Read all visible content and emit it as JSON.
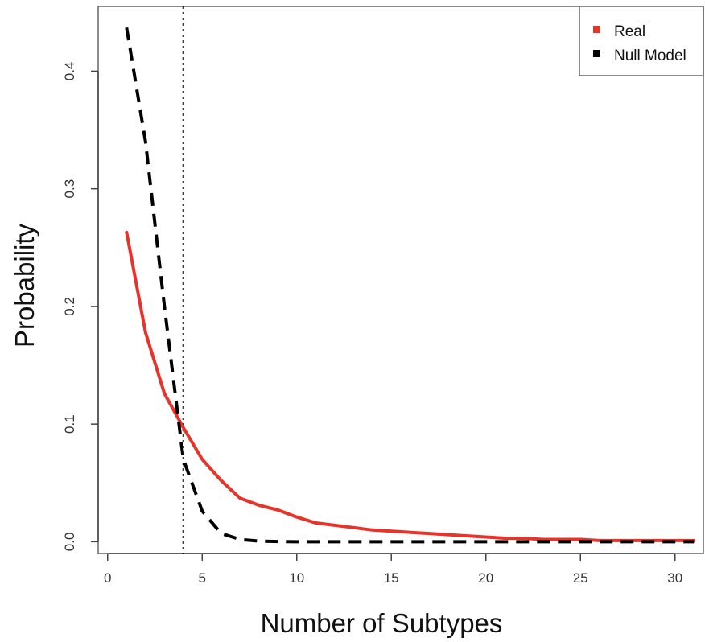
{
  "chart_data": {
    "type": "line",
    "title": "",
    "xlabel": "Number of Subtypes",
    "ylabel": "Probability",
    "xlim": [
      -0.5,
      31.5
    ],
    "ylim": [
      -0.01,
      0.455
    ],
    "xticks": [
      0,
      5,
      10,
      15,
      20,
      25,
      30
    ],
    "xtick_labels": [
      "0",
      "5",
      "10",
      "15",
      "20",
      "25",
      "30"
    ],
    "yticks": [
      0.0,
      0.1,
      0.2,
      0.3,
      0.4
    ],
    "ytick_labels": [
      "0.0",
      "0.1",
      "0.2",
      "0.3",
      "0.4"
    ],
    "grid": false,
    "legend_position": "top-right",
    "reference_line": {
      "x": 4,
      "style": "dotted",
      "color": "#000000"
    },
    "series": [
      {
        "name": "Real",
        "color": "#e8332b",
        "style": "solid",
        "x": [
          1,
          2,
          3,
          4,
          5,
          6,
          7,
          8,
          9,
          10,
          11,
          12,
          13,
          14,
          15,
          16,
          17,
          18,
          19,
          20,
          21,
          22,
          23,
          24,
          25,
          26,
          27,
          28,
          29,
          30,
          31
        ],
        "y": [
          0.263,
          0.178,
          0.126,
          0.097,
          0.07,
          0.052,
          0.037,
          0.031,
          0.027,
          0.021,
          0.016,
          0.014,
          0.012,
          0.01,
          0.009,
          0.008,
          0.007,
          0.006,
          0.005,
          0.004,
          0.003,
          0.003,
          0.002,
          0.002,
          0.002,
          0.001,
          0.001,
          0.001,
          0.001,
          0.001,
          0.001
        ]
      },
      {
        "name": "Null Model",
        "color": "#000000",
        "style": "dashed",
        "x": [
          1,
          2,
          3,
          4,
          5,
          6,
          7,
          8,
          9,
          10,
          11,
          12,
          13,
          14,
          15,
          16,
          17,
          18,
          19,
          20,
          21,
          22,
          23,
          24,
          25,
          26,
          27,
          28,
          29,
          30,
          31
        ],
        "y": [
          0.437,
          0.34,
          0.2,
          0.07,
          0.026,
          0.007,
          0.002,
          0.0005,
          0.0002,
          0,
          0,
          0,
          0,
          0,
          0,
          0,
          0,
          0,
          0,
          0,
          0,
          0,
          0,
          0,
          0,
          0,
          0,
          0,
          0,
          0,
          0
        ]
      }
    ]
  }
}
